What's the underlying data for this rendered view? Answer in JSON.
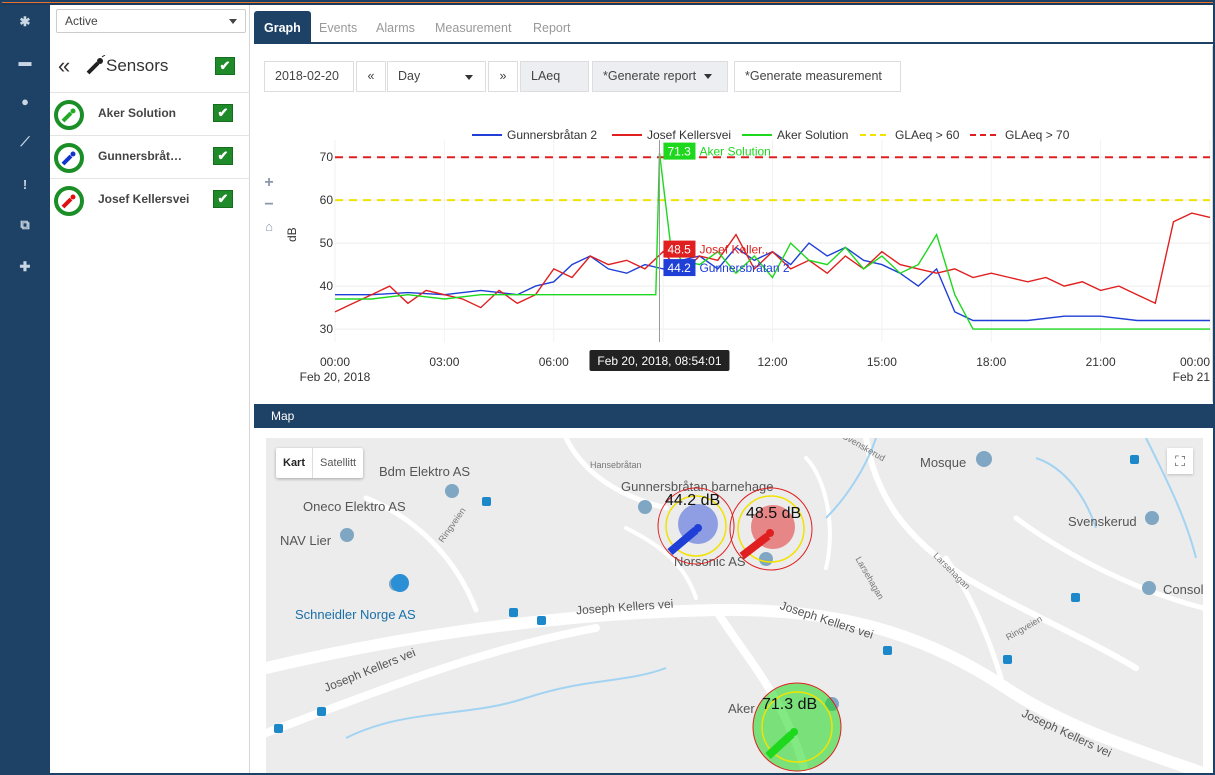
{
  "sidebar": {
    "filter_value": "Active",
    "sensors_title": "Sensors",
    "sensors": [
      {
        "name": "Aker Solution",
        "color": "#22aa22"
      },
      {
        "name": "Gunnersbråt…",
        "color": "#1133cc"
      },
      {
        "name": "Josef Kellersvei",
        "color": "#dd1111"
      }
    ],
    "check_glyph": "✔"
  },
  "icon_rail": [
    "gear-icon",
    "trash-icon",
    "user-icon",
    "sensor-icon",
    "alert-icon",
    "copy-icon",
    "plus-icon"
  ],
  "tabs": [
    "Graph",
    "Events",
    "Alarms",
    "Measurement",
    "Report"
  ],
  "active_tab": "Graph",
  "toolbar": {
    "date": "2018-02-20",
    "prev": "«",
    "period": "Day",
    "next": "»",
    "metric": "LAeq",
    "generate_report": "*Generate report",
    "generate_measurement": "*Generate measurement"
  },
  "chart_data": {
    "type": "line",
    "ylabel": "dB",
    "ylim": [
      27,
      74
    ],
    "yticks": [
      30,
      40,
      50,
      60,
      70
    ],
    "xticks": [
      "00:00",
      "03:00",
      "06:00",
      "09:00",
      "12:00",
      "15:00",
      "18:00",
      "21:00",
      "00:00"
    ],
    "xtick_sub": [
      "Feb 20, 2018",
      "",
      "",
      "",
      "",
      "",
      "",
      "",
      "Feb 21"
    ],
    "x_range_hours": [
      0,
      24
    ],
    "tooltip_time": "Feb 20, 2018, 08:54:01",
    "tooltip_x": 8.9,
    "legend": [
      {
        "name": "Gunnersbråtan 2",
        "color": "#1f3fd6",
        "dash": false
      },
      {
        "name": "Josef Kellersvei",
        "color": "#e02020",
        "dash": false
      },
      {
        "name": "Aker Solution",
        "color": "#1ed81e",
        "dash": false
      },
      {
        "name": "GLAeq > 60",
        "color": "#f2e200",
        "dash": true
      },
      {
        "name": "GLAeq > 70",
        "color": "#e02020",
        "dash": true
      }
    ],
    "thresholds": [
      {
        "value": 60,
        "color": "#f2e200"
      },
      {
        "value": 70,
        "color": "#e02020"
      }
    ],
    "hover_labels": [
      {
        "value": "71.3",
        "label": "Aker Solution",
        "color": "#1ed81e",
        "y": 71.3
      },
      {
        "value": "48.5",
        "label": "Josef Keller...",
        "color": "#e02020",
        "y": 48.5
      },
      {
        "value": "44.2",
        "label": "Gunnersbråtan 2",
        "color": "#1f3fd6",
        "y": 44.2
      }
    ],
    "series": [
      {
        "name": "Gunnersbråtan 2",
        "color": "#1f3fd6",
        "x": [
          0,
          1,
          2,
          3,
          4,
          5,
          5.5,
          6,
          6.5,
          7,
          7.5,
          8,
          8.5,
          9,
          9.5,
          10,
          10.5,
          11,
          11.5,
          12,
          12.5,
          13,
          13.5,
          14,
          14.5,
          15,
          15.5,
          16,
          16.5,
          17,
          17.5,
          18,
          19,
          20,
          21,
          22,
          23,
          24
        ],
        "y": [
          38,
          38,
          38.5,
          38,
          39,
          38,
          40,
          41,
          45,
          47,
          44,
          43,
          45,
          44,
          46,
          47,
          44,
          49,
          46,
          48,
          45,
          50,
          47,
          49,
          46,
          45,
          43,
          40,
          44,
          34,
          32,
          32,
          32,
          33,
          33,
          32,
          32,
          32
        ]
      },
      {
        "name": "Josef Kellersvei",
        "color": "#e02020",
        "x": [
          0,
          0.5,
          1,
          1.5,
          2,
          2.5,
          3,
          3.5,
          4,
          4.5,
          5,
          5.5,
          6,
          6.5,
          7,
          7.5,
          8,
          8.5,
          9,
          9.5,
          10,
          10.5,
          11,
          11.5,
          12,
          12.5,
          13,
          13.5,
          14,
          14.5,
          15,
          15.5,
          16,
          16.5,
          17,
          17.5,
          18,
          18.5,
          19,
          19.5,
          20,
          20.5,
          21,
          21.5,
          22,
          22.5,
          23,
          23.5,
          24
        ],
        "y": [
          34,
          36,
          38,
          40,
          36,
          39,
          38,
          37,
          35,
          39,
          36,
          38,
          44,
          42,
          47,
          45,
          46,
          44,
          48,
          43,
          47,
          46,
          52,
          44,
          48,
          44,
          46,
          43,
          47,
          44,
          48,
          45,
          44,
          43,
          44,
          42,
          43,
          42,
          41,
          42,
          40,
          41,
          39,
          40,
          38,
          36,
          55,
          57,
          56
        ]
      },
      {
        "name": "Aker Solution",
        "color": "#1ed81e",
        "x": [
          0,
          1,
          2,
          3,
          4,
          5,
          6,
          7,
          8,
          8.8,
          8.9,
          9.2,
          9.5,
          10,
          10.5,
          11,
          11.5,
          12,
          12.5,
          13,
          13.5,
          14,
          14.5,
          15,
          15.5,
          16,
          16.5,
          17,
          17.5,
          18,
          19,
          20,
          21,
          22,
          23,
          24
        ],
        "y": [
          37,
          37,
          38,
          37,
          38,
          38,
          38,
          38,
          38,
          38,
          71,
          50,
          46,
          45,
          48,
          43,
          47,
          42,
          50,
          46,
          45,
          49,
          44,
          47,
          43,
          45,
          52,
          38,
          30,
          30,
          30,
          30,
          30,
          30,
          30,
          30
        ]
      }
    ]
  },
  "map": {
    "title": "Map",
    "type_buttons": [
      "Kart",
      "Satellitt"
    ],
    "fullscreen_glyph": "⛶",
    "places": [
      "Bdm Elektro AS",
      "Oneco Elektro AS",
      "NAV Lier",
      "Schneidler Norge AS",
      "Gunnersbråtan barnehage",
      "Norsonic AS",
      "Mosque",
      "Svenskerud",
      "Consol",
      "Aker"
    ],
    "streets": [
      "Hansebråtan",
      "Joseph Kellers vei",
      "Joseph Kellers vei",
      "Joseph Kellers vei",
      "Joseph Kellers vei",
      "Ringveien",
      "Ringveien",
      "Larsehagan",
      "Larsehagan",
      "Svenskerud"
    ],
    "markers": [
      {
        "label": "44.2 dB",
        "color": "#1f3fd6"
      },
      {
        "label": "48.5 dB",
        "color": "#e02020"
      },
      {
        "label": "71.3 dB",
        "color": "#1ed81e"
      }
    ]
  }
}
